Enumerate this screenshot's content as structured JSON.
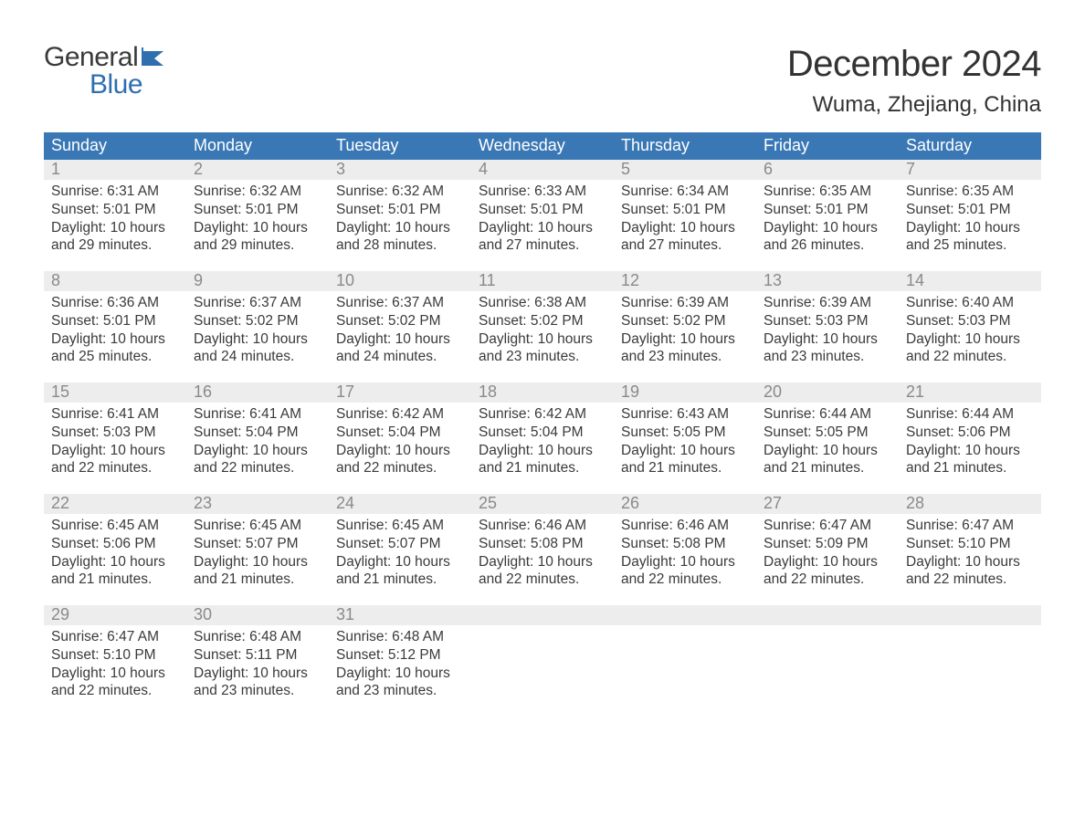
{
  "logo": {
    "line1": "General",
    "line2": "Blue"
  },
  "title": "December 2024",
  "location": "Wuma, Zhejiang, China",
  "brand_color": "#3a78b5",
  "header_bg": "#3a78b5",
  "header_text_color": "#ffffff",
  "daynum_bg": "#ededed",
  "daynum_color": "#8a8a8a",
  "body_text_color": "#3a3a3a",
  "day_names": [
    "Sunday",
    "Monday",
    "Tuesday",
    "Wednesday",
    "Thursday",
    "Friday",
    "Saturday"
  ],
  "weeks": [
    [
      {
        "n": "1",
        "sunrise": "6:31 AM",
        "sunset": "5:01 PM",
        "dl": "10 hours and 29 minutes."
      },
      {
        "n": "2",
        "sunrise": "6:32 AM",
        "sunset": "5:01 PM",
        "dl": "10 hours and 29 minutes."
      },
      {
        "n": "3",
        "sunrise": "6:32 AM",
        "sunset": "5:01 PM",
        "dl": "10 hours and 28 minutes."
      },
      {
        "n": "4",
        "sunrise": "6:33 AM",
        "sunset": "5:01 PM",
        "dl": "10 hours and 27 minutes."
      },
      {
        "n": "5",
        "sunrise": "6:34 AM",
        "sunset": "5:01 PM",
        "dl": "10 hours and 27 minutes."
      },
      {
        "n": "6",
        "sunrise": "6:35 AM",
        "sunset": "5:01 PM",
        "dl": "10 hours and 26 minutes."
      },
      {
        "n": "7",
        "sunrise": "6:35 AM",
        "sunset": "5:01 PM",
        "dl": "10 hours and 25 minutes."
      }
    ],
    [
      {
        "n": "8",
        "sunrise": "6:36 AM",
        "sunset": "5:01 PM",
        "dl": "10 hours and 25 minutes."
      },
      {
        "n": "9",
        "sunrise": "6:37 AM",
        "sunset": "5:02 PM",
        "dl": "10 hours and 24 minutes."
      },
      {
        "n": "10",
        "sunrise": "6:37 AM",
        "sunset": "5:02 PM",
        "dl": "10 hours and 24 minutes."
      },
      {
        "n": "11",
        "sunrise": "6:38 AM",
        "sunset": "5:02 PM",
        "dl": "10 hours and 23 minutes."
      },
      {
        "n": "12",
        "sunrise": "6:39 AM",
        "sunset": "5:02 PM",
        "dl": "10 hours and 23 minutes."
      },
      {
        "n": "13",
        "sunrise": "6:39 AM",
        "sunset": "5:03 PM",
        "dl": "10 hours and 23 minutes."
      },
      {
        "n": "14",
        "sunrise": "6:40 AM",
        "sunset": "5:03 PM",
        "dl": "10 hours and 22 minutes."
      }
    ],
    [
      {
        "n": "15",
        "sunrise": "6:41 AM",
        "sunset": "5:03 PM",
        "dl": "10 hours and 22 minutes."
      },
      {
        "n": "16",
        "sunrise": "6:41 AM",
        "sunset": "5:04 PM",
        "dl": "10 hours and 22 minutes."
      },
      {
        "n": "17",
        "sunrise": "6:42 AM",
        "sunset": "5:04 PM",
        "dl": "10 hours and 22 minutes."
      },
      {
        "n": "18",
        "sunrise": "6:42 AM",
        "sunset": "5:04 PM",
        "dl": "10 hours and 21 minutes."
      },
      {
        "n": "19",
        "sunrise": "6:43 AM",
        "sunset": "5:05 PM",
        "dl": "10 hours and 21 minutes."
      },
      {
        "n": "20",
        "sunrise": "6:44 AM",
        "sunset": "5:05 PM",
        "dl": "10 hours and 21 minutes."
      },
      {
        "n": "21",
        "sunrise": "6:44 AM",
        "sunset": "5:06 PM",
        "dl": "10 hours and 21 minutes."
      }
    ],
    [
      {
        "n": "22",
        "sunrise": "6:45 AM",
        "sunset": "5:06 PM",
        "dl": "10 hours and 21 minutes."
      },
      {
        "n": "23",
        "sunrise": "6:45 AM",
        "sunset": "5:07 PM",
        "dl": "10 hours and 21 minutes."
      },
      {
        "n": "24",
        "sunrise": "6:45 AM",
        "sunset": "5:07 PM",
        "dl": "10 hours and 21 minutes."
      },
      {
        "n": "25",
        "sunrise": "6:46 AM",
        "sunset": "5:08 PM",
        "dl": "10 hours and 22 minutes."
      },
      {
        "n": "26",
        "sunrise": "6:46 AM",
        "sunset": "5:08 PM",
        "dl": "10 hours and 22 minutes."
      },
      {
        "n": "27",
        "sunrise": "6:47 AM",
        "sunset": "5:09 PM",
        "dl": "10 hours and 22 minutes."
      },
      {
        "n": "28",
        "sunrise": "6:47 AM",
        "sunset": "5:10 PM",
        "dl": "10 hours and 22 minutes."
      }
    ],
    [
      {
        "n": "29",
        "sunrise": "6:47 AM",
        "sunset": "5:10 PM",
        "dl": "10 hours and 22 minutes."
      },
      {
        "n": "30",
        "sunrise": "6:48 AM",
        "sunset": "5:11 PM",
        "dl": "10 hours and 23 minutes."
      },
      {
        "n": "31",
        "sunrise": "6:48 AM",
        "sunset": "5:12 PM",
        "dl": "10 hours and 23 minutes."
      },
      null,
      null,
      null,
      null
    ]
  ],
  "labels": {
    "sunrise": "Sunrise: ",
    "sunset": "Sunset: ",
    "daylight": "Daylight: "
  }
}
